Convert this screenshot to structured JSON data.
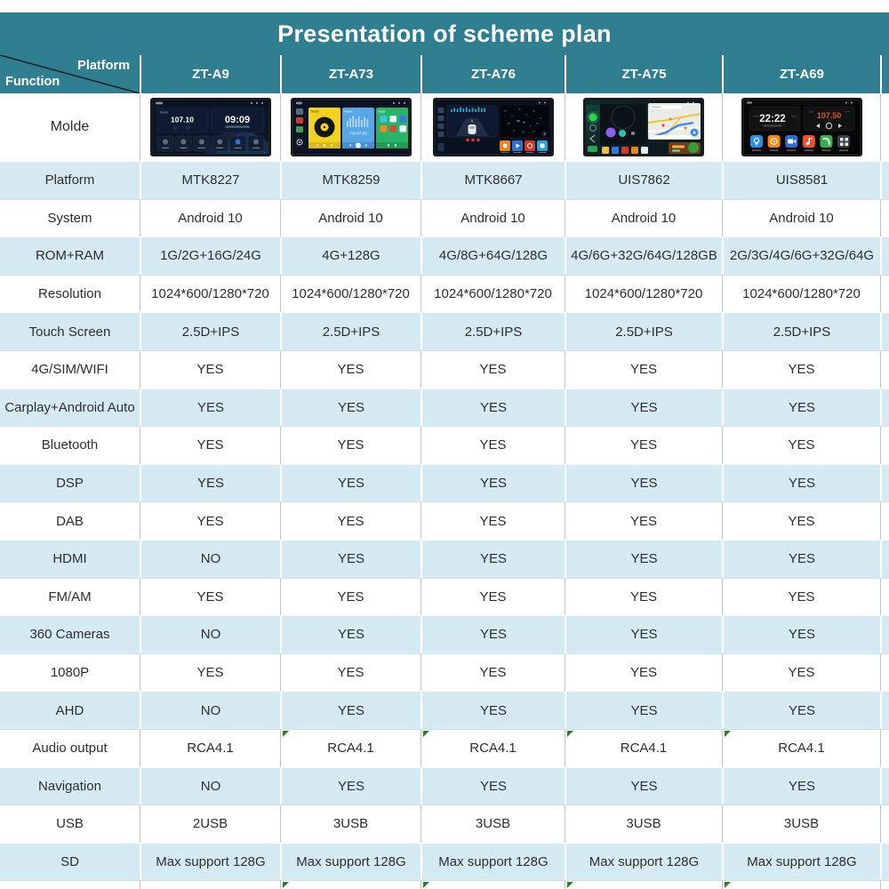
{
  "title": "Presentation of scheme plan",
  "corner": {
    "top_label": "Platform",
    "bottom_label": "Function"
  },
  "columns": [
    "ZT-A9",
    "ZT-A73",
    "ZT-A76",
    "ZT-A75",
    "ZT-A69"
  ],
  "molde_label": "Molde",
  "table": {
    "rows": [
      {
        "label": "Platform",
        "shade": "blue",
        "values": [
          "MTK8227",
          "MTK8259",
          "MTK8667",
          "UIS7862",
          "UIS8581"
        ]
      },
      {
        "label": "System",
        "shade": "white",
        "values": [
          "Android 10",
          "Android 10",
          "Android 10",
          "Android 10",
          "Android 10"
        ]
      },
      {
        "label": "ROM+RAM",
        "shade": "blue",
        "values": [
          "1G/2G+16G/24G",
          "4G+128G",
          "4G/8G+64G/128G",
          "4G/6G+32G/64G/128GB",
          "2G/3G/4G/6G+32G/64G"
        ]
      },
      {
        "label": "Resolution",
        "shade": "white",
        "values": [
          "1024*600/1280*720",
          "1024*600/1280*720",
          "1024*600/1280*720",
          "1024*600/1280*720",
          "1024*600/1280*720"
        ]
      },
      {
        "label": "Touch Screen",
        "shade": "blue",
        "values": [
          "2.5D+IPS",
          "2.5D+IPS",
          "2.5D+IPS",
          "2.5D+IPS",
          "2.5D+IPS"
        ]
      },
      {
        "label": "4G/SIM/WIFI",
        "shade": "white",
        "values": [
          "YES",
          "YES",
          "YES",
          "YES",
          "YES"
        ]
      },
      {
        "label": "Carplay+Android Auto",
        "shade": "blue",
        "values": [
          "YES",
          "YES",
          "YES",
          "YES",
          "YES"
        ]
      },
      {
        "label": "Bluetooth",
        "shade": "white",
        "values": [
          "YES",
          "YES",
          "YES",
          "YES",
          "YES"
        ]
      },
      {
        "label": "DSP",
        "shade": "blue",
        "values": [
          "YES",
          "YES",
          "YES",
          "YES",
          "YES"
        ]
      },
      {
        "label": "DAB",
        "shade": "white",
        "values": [
          "YES",
          "YES",
          "YES",
          "YES",
          "YES"
        ]
      },
      {
        "label": "HDMI",
        "shade": "blue",
        "values": [
          "NO",
          "YES",
          "YES",
          "YES",
          "YES"
        ]
      },
      {
        "label": "FM/AM",
        "shade": "white",
        "values": [
          "YES",
          "YES",
          "YES",
          "YES",
          "YES"
        ]
      },
      {
        "label": "360 Cameras",
        "shade": "blue",
        "values": [
          "NO",
          "YES",
          "YES",
          "YES",
          "YES"
        ]
      },
      {
        "label": "1080P",
        "shade": "white",
        "values": [
          "YES",
          "YES",
          "YES",
          "YES",
          "YES"
        ]
      },
      {
        "label": "AHD",
        "shade": "blue",
        "values": [
          "NO",
          "YES",
          "YES",
          "YES",
          "YES"
        ]
      },
      {
        "label": "Audio output",
        "shade": "white",
        "values": [
          "RCA4.1",
          "RCA4.1",
          "RCA4.1",
          "RCA4.1",
          "RCA4.1"
        ],
        "triangles": [
          1,
          2,
          3,
          4
        ]
      },
      {
        "label": "Navigation",
        "shade": "blue",
        "values": [
          "NO",
          "YES",
          "YES",
          "YES",
          "YES"
        ]
      },
      {
        "label": "USB",
        "shade": "white",
        "values": [
          "2USB",
          "3USB",
          "3USB",
          "3USB",
          "3USB"
        ]
      },
      {
        "label": "SD",
        "shade": "blue",
        "values": [
          "Max support 128G",
          "Max support 128G",
          "Max support 128G",
          "Max support 128G",
          "Max support 128G"
        ]
      }
    ]
  },
  "screens": {
    "a9": {
      "radio_label": "Radio",
      "freq": "107.10",
      "time": "09:09"
    },
    "a73": {
      "music_label": "Music",
      "radio_label": "Radio",
      "apps_label": "Apps",
      "freq": "FM 87.50"
    },
    "a69": {
      "time": "22:22",
      "freq": "107.50"
    }
  },
  "colors": {
    "header_teal": "#2F7E8F",
    "row_light_blue": "#D5EAF2",
    "grid_gray": "#B6C9D2",
    "indicator_green": "#2E7D32"
  }
}
